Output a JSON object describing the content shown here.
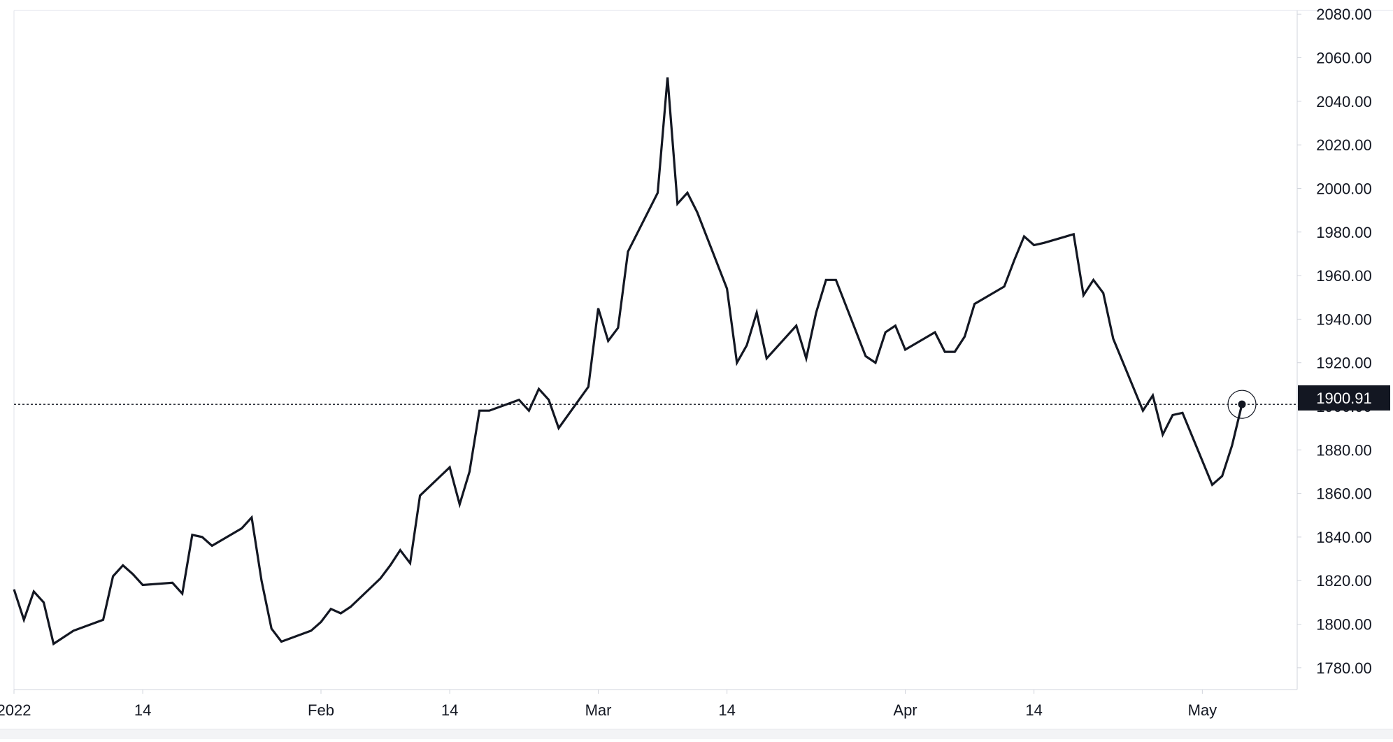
{
  "chart_data": {
    "type": "line",
    "title": "",
    "xlabel": "",
    "ylabel": "",
    "ylim": [
      1770,
      2082
    ],
    "y_ticks": [
      1780,
      1800,
      1820,
      1840,
      1860,
      1880,
      1900,
      1920,
      1940,
      1960,
      1980,
      2000,
      2020,
      2040,
      2060,
      2080
    ],
    "y_tick_labels": [
      "1780.00",
      "1800.00",
      "1820.00",
      "1840.00",
      "1860.00",
      "1880.00",
      "1900.00",
      "1920.00",
      "1940.00",
      "1960.00",
      "1980.00",
      "2000.00",
      "2020.00",
      "2040.00",
      "2060.00",
      "2080.00"
    ],
    "x_ticks": [
      {
        "date": "2022-01-01",
        "label": "2022"
      },
      {
        "date": "2022-01-14",
        "label": "14"
      },
      {
        "date": "2022-02-01",
        "label": "Feb"
      },
      {
        "date": "2022-02-14",
        "label": "14"
      },
      {
        "date": "2022-03-01",
        "label": "Mar"
      },
      {
        "date": "2022-03-14",
        "label": "14"
      },
      {
        "date": "2022-04-01",
        "label": "Apr"
      },
      {
        "date": "2022-04-14",
        "label": "14"
      },
      {
        "date": "2022-05-01",
        "label": "May"
      }
    ],
    "grid": false,
    "line_color": "#131722",
    "last_value": 1900.91,
    "last_value_label": "1900.91",
    "series": [
      {
        "x": [
          "2022-01-01",
          "2022-01-02",
          "2022-01-03",
          "2022-01-04",
          "2022-01-05",
          "2022-01-07",
          "2022-01-10",
          "2022-01-11",
          "2022-01-12",
          "2022-01-13",
          "2022-01-14",
          "2022-01-17",
          "2022-01-18",
          "2022-01-19",
          "2022-01-20",
          "2022-01-21",
          "2022-01-24",
          "2022-01-25",
          "2022-01-26",
          "2022-01-27",
          "2022-01-28",
          "2022-01-31",
          "2022-02-01",
          "2022-02-02",
          "2022-02-03",
          "2022-02-04",
          "2022-02-07",
          "2022-02-08",
          "2022-02-09",
          "2022-02-10",
          "2022-02-11",
          "2022-02-14",
          "2022-02-15",
          "2022-02-16",
          "2022-02-17",
          "2022-02-18",
          "2022-02-21",
          "2022-02-22",
          "2022-02-23",
          "2022-02-24",
          "2022-02-25",
          "2022-02-28",
          "2022-03-01",
          "2022-03-02",
          "2022-03-03",
          "2022-03-04",
          "2022-03-07",
          "2022-03-08",
          "2022-03-09",
          "2022-03-10",
          "2022-03-11",
          "2022-03-14",
          "2022-03-15",
          "2022-03-16",
          "2022-03-17",
          "2022-03-18",
          "2022-03-21",
          "2022-03-22",
          "2022-03-23",
          "2022-03-24",
          "2022-03-25",
          "2022-03-28",
          "2022-03-29",
          "2022-03-30",
          "2022-03-31",
          "2022-04-01",
          "2022-04-04",
          "2022-04-05",
          "2022-04-06",
          "2022-04-07",
          "2022-04-08",
          "2022-04-11",
          "2022-04-12",
          "2022-04-13",
          "2022-04-14",
          "2022-04-15",
          "2022-04-18",
          "2022-04-19",
          "2022-04-20",
          "2022-04-21",
          "2022-04-22",
          "2022-04-25",
          "2022-04-26",
          "2022-04-27",
          "2022-04-28",
          "2022-04-29",
          "2022-05-02",
          "2022-05-03",
          "2022-05-04",
          "2022-05-05"
        ],
        "values": [
          1816,
          1802,
          1815,
          1810,
          1791,
          1797,
          1802,
          1822,
          1827,
          1823,
          1818,
          1819,
          1814,
          1841,
          1840,
          1836,
          1844,
          1849,
          1820,
          1798,
          1792,
          1797,
          1801,
          1807,
          1805,
          1808,
          1821,
          1827,
          1834,
          1828,
          1859,
          1872,
          1855,
          1870,
          1898,
          1898,
          1903,
          1898,
          1908,
          1903,
          1890,
          1909,
          1945,
          1930,
          1936,
          1971,
          1998,
          2051,
          1993,
          1998,
          1989,
          1954,
          1920,
          1928,
          1943,
          1922,
          1937,
          1922,
          1943,
          1958,
          1958,
          1923,
          1920,
          1934,
          1937,
          1926,
          1934,
          1925,
          1925,
          1932,
          1947,
          1955,
          1967,
          1978,
          1974,
          1975,
          1979,
          1951,
          1958,
          1952,
          1931,
          1898,
          1905,
          1887,
          1896,
          1897,
          1864,
          1868,
          1882,
          1900.91
        ]
      }
    ]
  }
}
